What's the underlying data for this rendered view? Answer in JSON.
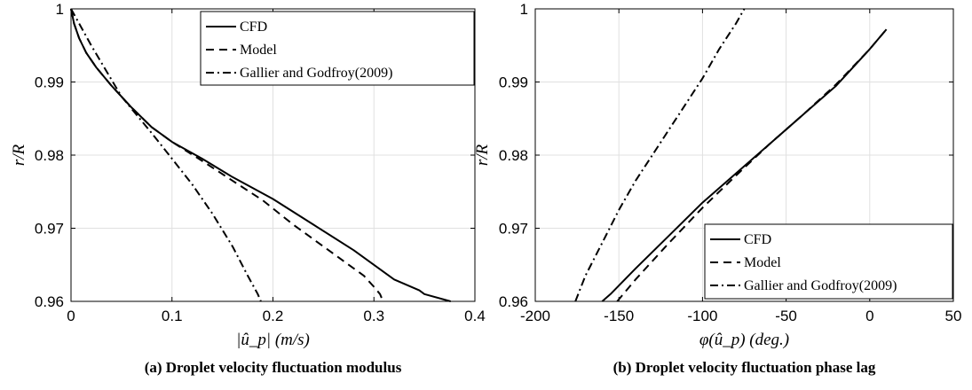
{
  "chart_data": [
    {
      "type": "line",
      "caption": "(a) Droplet velocity fluctuation modulus",
      "xlabel": "|û_p| (m/s)",
      "ylabel": "r/R",
      "xlim": [
        0,
        0.4
      ],
      "ylim": [
        0.96,
        1
      ],
      "xticks": [
        "0",
        "0.1",
        "0.2",
        "0.3",
        "0.4"
      ],
      "yticks": [
        "0.96",
        "0.97",
        "0.98",
        "0.99",
        "1"
      ],
      "grid": true,
      "legend_position": "top-right",
      "series": [
        {
          "name": "CFD",
          "style": "solid",
          "x": [
            0.0,
            0.003,
            0.008,
            0.015,
            0.025,
            0.04,
            0.06,
            0.08,
            0.1,
            0.13,
            0.16,
            0.2,
            0.24,
            0.28,
            0.32,
            0.345,
            0.35,
            0.376
          ],
          "y": [
            1.0,
            0.998,
            0.996,
            0.994,
            0.992,
            0.9895,
            0.9865,
            0.9838,
            0.9818,
            0.9795,
            0.977,
            0.974,
            0.9705,
            0.967,
            0.963,
            0.9615,
            0.961,
            0.96
          ]
        },
        {
          "name": "Model",
          "style": "dashed",
          "x": [
            0.0,
            0.003,
            0.008,
            0.015,
            0.025,
            0.04,
            0.06,
            0.08,
            0.1,
            0.13,
            0.16,
            0.19,
            0.22,
            0.25,
            0.27,
            0.29,
            0.3,
            0.306,
            0.309
          ],
          "y": [
            1.0,
            0.998,
            0.996,
            0.994,
            0.992,
            0.9895,
            0.9865,
            0.9838,
            0.9818,
            0.9792,
            0.9765,
            0.9738,
            0.9705,
            0.9675,
            0.9655,
            0.9635,
            0.962,
            0.961,
            0.96
          ]
        },
        {
          "name": "Gallier and Godfroy(2009)",
          "style": "dashdot",
          "x": [
            0.0,
            0.01,
            0.02,
            0.035,
            0.05,
            0.065,
            0.08,
            0.1,
            0.12,
            0.14,
            0.16,
            0.175,
            0.185,
            0.188
          ],
          "y": [
            1.0,
            0.9975,
            0.995,
            0.9915,
            0.988,
            0.9855,
            0.983,
            0.9795,
            0.976,
            0.972,
            0.9675,
            0.9635,
            0.961,
            0.96
          ]
        }
      ]
    },
    {
      "type": "line",
      "caption": "(b) Droplet velocity fluctuation phase lag",
      "xlabel": "φ(û_p) (deg.)",
      "ylabel": "r/R",
      "xlim": [
        -200,
        50
      ],
      "ylim": [
        0.96,
        1
      ],
      "xticks": [
        "-200",
        "-150",
        "-100",
        "-50",
        "0",
        "50"
      ],
      "yticks": [
        "0.96",
        "0.97",
        "0.98",
        "0.99",
        "1"
      ],
      "grid": true,
      "legend_position": "bottom-right",
      "series": [
        {
          "name": "CFD",
          "style": "solid",
          "x": [
            -160,
            -155,
            -140,
            -120,
            -100,
            -80,
            -60,
            -40,
            -20,
            0,
            10
          ],
          "y": [
            0.96,
            0.961,
            0.9645,
            0.969,
            0.9735,
            0.9775,
            0.9815,
            0.9855,
            0.9895,
            0.9945,
            0.9972
          ]
        },
        {
          "name": "Model",
          "style": "dashed",
          "x": [
            -151,
            -140,
            -120,
            -100,
            -80,
            -60,
            -40,
            -20,
            0,
            10
          ],
          "y": [
            0.96,
            0.963,
            0.968,
            0.9728,
            0.9772,
            0.9815,
            0.9855,
            0.9897,
            0.9945,
            0.9972
          ]
        },
        {
          "name": "Gallier and Godfroy(2009)",
          "style": "dashdot",
          "x": [
            -176,
            -170,
            -160,
            -150,
            -140,
            -130,
            -120,
            -110,
            -100,
            -90,
            -80,
            -75
          ],
          "y": [
            0.96,
            0.9635,
            0.968,
            0.9725,
            0.9765,
            0.98,
            0.9835,
            0.987,
            0.9905,
            0.9945,
            0.998,
            1.0
          ]
        }
      ]
    }
  ]
}
